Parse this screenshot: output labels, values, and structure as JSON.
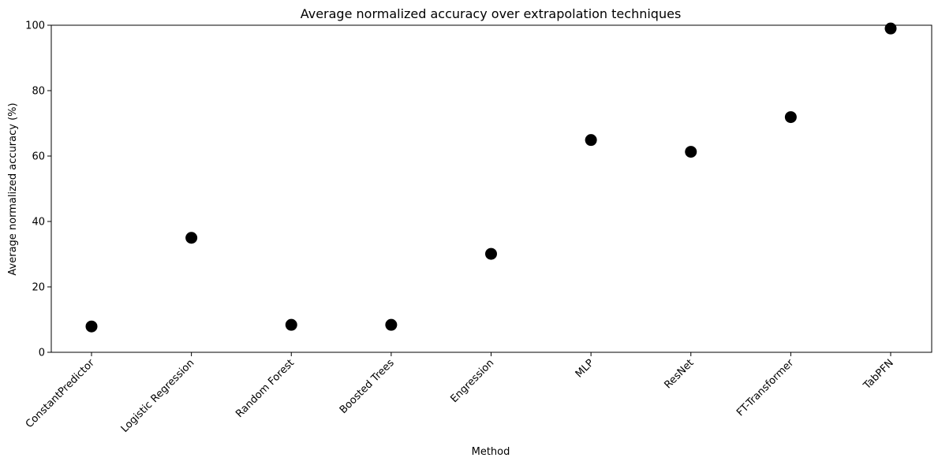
{
  "chart_data": {
    "type": "scatter",
    "title": "Average normalized accuracy over extrapolation techniques",
    "xlabel": "Method",
    "ylabel": "Average normalized accuracy (%)",
    "categories": [
      "ConstantPredictor",
      "Logistic Regression",
      "Random Forest",
      "Boosted Trees",
      "Engression",
      "MLP",
      "ResNet",
      "FT-Transformer",
      "TabPFN"
    ],
    "values": [
      7.9,
      35.0,
      8.4,
      8.4,
      30.1,
      64.9,
      61.3,
      71.9,
      99.0
    ],
    "ylim": [
      0,
      100
    ],
    "yticks": [
      0,
      20,
      40,
      60,
      80,
      100
    ],
    "grid": false,
    "legend": "none",
    "marker_color": "#000000"
  }
}
